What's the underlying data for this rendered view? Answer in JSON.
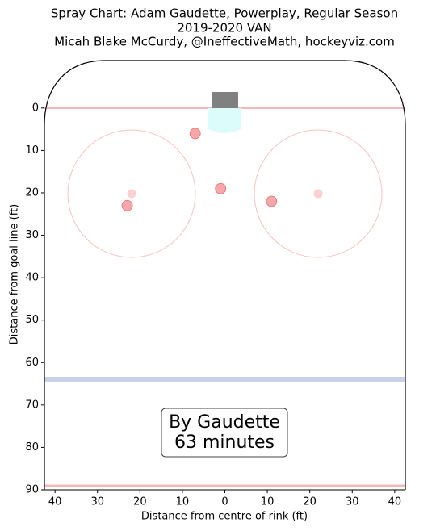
{
  "chart_data": {
    "type": "scatter",
    "title": "Spray Chart: Adam Gaudette, Powerplay, Regular Season",
    "subtitle": "2019-2020 VAN",
    "credit": "Micah Blake McCurdy, @IneffectiveMath, hockeyviz.com",
    "x_label": "Distance from centre of rink (ft)",
    "y_label": "Distance from goal line (ft)",
    "annotation": "By Gaudette\n63 minutes",
    "x": [
      -7,
      -1,
      -23,
      11
    ],
    "values": [
      6,
      19,
      23,
      22
    ],
    "color": "#f4898c",
    "xlim": [
      -42.5,
      42.5
    ],
    "ylim": [
      -11,
      90
    ],
    "y_inverted": true,
    "xticks": [
      {
        "value": -40,
        "label": "40"
      },
      {
        "value": -30,
        "label": "30"
      },
      {
        "value": -20,
        "label": "20"
      },
      {
        "value": -10,
        "label": "10"
      },
      0,
      10,
      20,
      30,
      40
    ],
    "yticks": [
      0,
      10,
      20,
      30,
      40,
      50,
      60,
      70,
      80,
      90
    ]
  }
}
